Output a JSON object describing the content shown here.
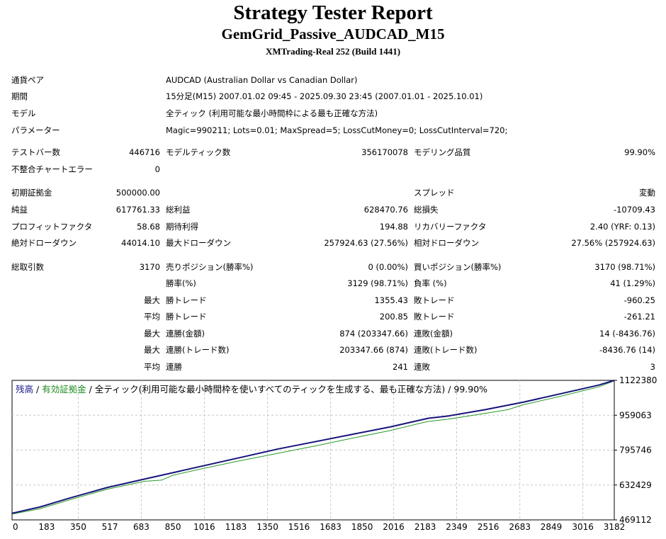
{
  "report": {
    "title": "Strategy Tester Report",
    "subtitle": "GemGrid_Passive_AUDCAD_M15",
    "build": "XMTrading-Real 252 (Build 1441)"
  },
  "info": {
    "symbol_label": "通貨ペア",
    "symbol_value": "AUDCAD (Australian Dollar vs Canadian Dollar)",
    "period_label": "期間",
    "period_value": "15分足(M15) 2007.01.02 09:45 - 2025.09.30 23:45 (2007.01.01 - 2025.10.01)",
    "model_label": "モデル",
    "model_value": "全ティック (利用可能な最小時間枠による最も正確な方法)",
    "params_label": "パラメーター",
    "params_value": "Magic=990211; Lots=0.01; MaxSpread=5; LossCutMoney=0; LossCutInterval=720;"
  },
  "stats": {
    "bars_label": "テストバー数",
    "bars_value": "446716",
    "ticks_label": "モデルティック数",
    "ticks_value": "356170078",
    "quality_label": "モデリング品質",
    "quality_value": "99.90%",
    "errors_label": "不整合チャートエラー",
    "errors_value": "0",
    "deposit_label": "初期証拠金",
    "deposit_value": "500000.00",
    "spread_label": "スプレッド",
    "spread_value": "変動",
    "net_label": "純益",
    "net_value": "617761.33",
    "gross_profit_label": "総利益",
    "gross_profit_value": "628470.76",
    "gross_loss_label": "総損失",
    "gross_loss_value": "-10709.43",
    "pf_label": "プロフィットファクタ",
    "pf_value": "58.68",
    "payoff_label": "期待利得",
    "payoff_value": "194.88",
    "recovery_label": "リカバリーファクタ",
    "recovery_value": "2.40 (YRF: 0.13)",
    "abs_dd_label": "絶対ドローダウン",
    "abs_dd_value": "44014.10",
    "max_dd_label": "最大ドローダウン",
    "max_dd_value": "257924.63 (27.56%)",
    "rel_dd_label": "相対ドローダウン",
    "rel_dd_value": "27.56% (257924.63)",
    "total_label": "総取引数",
    "total_value": "3170",
    "short_label": "売りポジション(勝率%)",
    "short_value": "0 (0.00%)",
    "long_label": "買いポジション(勝率%)",
    "long_value": "3170 (98.71%)",
    "win_label": "勝率(%)",
    "win_value": "3129 (98.71%)",
    "loss_label": "負率 (%)",
    "loss_value": "41 (1.29%)",
    "largest_label": "最大",
    "largest_win_label": "勝トレード",
    "largest_win_value": "1355.43",
    "largest_loss_label": "敗トレード",
    "largest_loss_value": "-960.25",
    "average_label": "平均",
    "avg_win_label": "勝トレード",
    "avg_win_value": "200.85",
    "avg_loss_label": "敗トレード",
    "avg_loss_value": "-261.21",
    "max1_label": "最大",
    "cons_wins_money_label": "連勝(金額)",
    "cons_wins_money_value": "874 (203347.66)",
    "cons_losses_money_label": "連敗(金額)",
    "cons_losses_money_value": "14 (-8436.76)",
    "max2_label": "最大",
    "cons_wins_count_label": "連勝(トレード数)",
    "cons_wins_count_value": "203347.66 (874)",
    "cons_losses_count_label": "連敗(トレード数)",
    "cons_losses_count_value": "-8436.76 (14)",
    "avg2_label": "平均",
    "avg_cons_wins_label": "連勝",
    "avg_cons_wins_value": "241",
    "avg_cons_losses_label": "連敗",
    "avg_cons_losses_value": "3"
  },
  "chart_data": {
    "type": "line",
    "legend_balance": "残高",
    "legend_sep1": " / ",
    "legend_equity": "有効証拠金",
    "legend_rest": " / 全ティック(利用可能な最小時間枠を使いすべてのティックを生成する、最も正確な方法) / 99.90%",
    "xlim": [
      0,
      3182
    ],
    "ylim": [
      469112,
      1122380
    ],
    "x_ticks": [
      0,
      183,
      350,
      517,
      683,
      850,
      1016,
      1183,
      1350,
      1516,
      1683,
      1850,
      2016,
      2183,
      2349,
      2516,
      2683,
      2849,
      3016,
      3182
    ],
    "y_ticks": [
      1122380,
      959063,
      795746,
      632429,
      469112
    ],
    "colors": {
      "balance": "#15157a",
      "equity": "#2a9a2a",
      "grid": "#c8c8c8"
    },
    "series": [
      {
        "name": "残高",
        "x": [
          0,
          150,
          300,
          500,
          700,
          850,
          1000,
          1200,
          1400,
          1600,
          1800,
          2000,
          2150,
          2200,
          2300,
          2500,
          2700,
          2900,
          3100,
          3182
        ],
        "values": [
          500000,
          530000,
          570000,
          620000,
          660000,
          690000,
          720000,
          760000,
          800000,
          835000,
          870000,
          905000,
          935000,
          945000,
          955000,
          985000,
          1020000,
          1060000,
          1100000,
          1122380
        ]
      },
      {
        "name": "有効証拠金",
        "x": [
          0,
          150,
          300,
          500,
          700,
          790,
          850,
          1000,
          1200,
          1400,
          1600,
          1800,
          2000,
          2150,
          2200,
          2300,
          2500,
          2620,
          2700,
          2900,
          3100,
          3182
        ],
        "values": [
          496000,
          522000,
          562000,
          612000,
          650000,
          655000,
          678000,
          708000,
          745000,
          780000,
          815000,
          852000,
          888000,
          920000,
          930000,
          940000,
          968000,
          985000,
          1008000,
          1048000,
          1092000,
          1120000
        ]
      }
    ]
  }
}
